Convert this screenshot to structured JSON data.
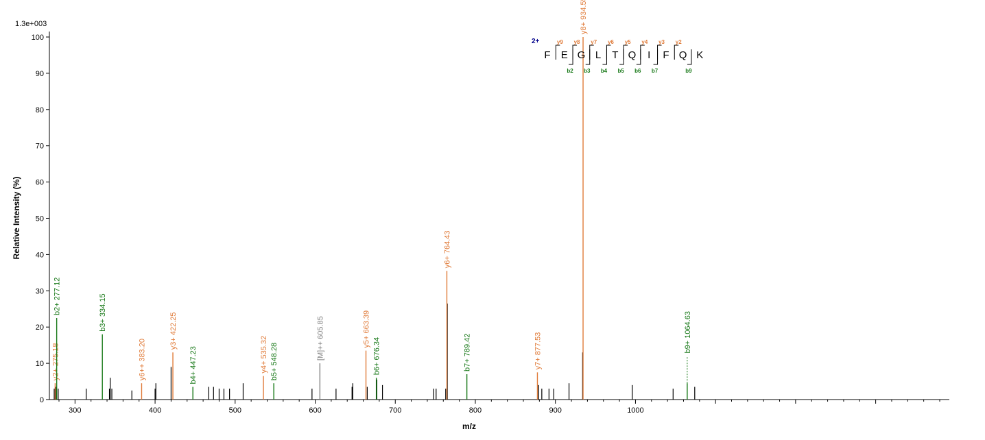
{
  "chart_data": {
    "type": "bar",
    "scale_label": "1.3e+003",
    "xlabel": "m/z",
    "ylabel": "Relative   Intensity (%)",
    "xlim": [
      268,
      1392
    ],
    "ylim": [
      0,
      100
    ],
    "x_ticks": [
      300,
      400,
      500,
      600,
      700,
      800,
      900,
      1000
    ],
    "y_ticks": [
      0,
      10,
      20,
      30,
      40,
      50,
      60,
      70,
      80,
      90,
      100
    ],
    "colors": {
      "b": "#1a7a1a",
      "y": "#e07b39",
      "precursor": "#808080",
      "unassigned": "#000000",
      "charge": "#00008b"
    },
    "unassigned_peaks": [
      {
        "mz": 274,
        "i": 3
      },
      {
        "mz": 276,
        "i": 3.5
      },
      {
        "mz": 279,
        "i": 3
      },
      {
        "mz": 314,
        "i": 3
      },
      {
        "mz": 343,
        "i": 3
      },
      {
        "mz": 344,
        "i": 6
      },
      {
        "mz": 346,
        "i": 3
      },
      {
        "mz": 371,
        "i": 2.5
      },
      {
        "mz": 400,
        "i": 3
      },
      {
        "mz": 401,
        "i": 4.5
      },
      {
        "mz": 420,
        "i": 9
      },
      {
        "mz": 467,
        "i": 3.5
      },
      {
        "mz": 473,
        "i": 3.5
      },
      {
        "mz": 480,
        "i": 3
      },
      {
        "mz": 486,
        "i": 3
      },
      {
        "mz": 493,
        "i": 3
      },
      {
        "mz": 510,
        "i": 4.5
      },
      {
        "mz": 596,
        "i": 3
      },
      {
        "mz": 626,
        "i": 3
      },
      {
        "mz": 646,
        "i": 3.5
      },
      {
        "mz": 647,
        "i": 4.5
      },
      {
        "mz": 665,
        "i": 3.5
      },
      {
        "mz": 677,
        "i": 5.5
      },
      {
        "mz": 684,
        "i": 4
      },
      {
        "mz": 748,
        "i": 3
      },
      {
        "mz": 751,
        "i": 3
      },
      {
        "mz": 763,
        "i": 3
      },
      {
        "mz": 765,
        "i": 26.5
      },
      {
        "mz": 879,
        "i": 4
      },
      {
        "mz": 883,
        "i": 3
      },
      {
        "mz": 892,
        "i": 3
      },
      {
        "mz": 898,
        "i": 3
      },
      {
        "mz": 917,
        "i": 4.5
      },
      {
        "mz": 934,
        "i": 13
      },
      {
        "mz": 996,
        "i": 4
      },
      {
        "mz": 1047,
        "i": 3
      },
      {
        "mz": 1074,
        "i": 3.5
      }
    ],
    "labeled_peaks": [
      {
        "mz": 275.18,
        "i": 4.5,
        "type": "y",
        "label": "y2+ 275.18"
      },
      {
        "mz": 277.12,
        "i": 22.5,
        "type": "b",
        "label": "b2+ 277.12"
      },
      {
        "mz": 334.15,
        "i": 18,
        "type": "b",
        "label": "b3+ 334.15"
      },
      {
        "mz": 383.2,
        "i": 4.5,
        "type": "y",
        "label": "y6++ 383.20"
      },
      {
        "mz": 422.25,
        "i": 13,
        "type": "y",
        "label": "y3+ 422.25"
      },
      {
        "mz": 447.23,
        "i": 3.5,
        "type": "b",
        "label": "b4+ 447.23"
      },
      {
        "mz": 535.32,
        "i": 6.5,
        "type": "y",
        "label": "y4+ 535.32"
      },
      {
        "mz": 548.28,
        "i": 4.5,
        "type": "b",
        "label": "b5+ 548.28"
      },
      {
        "mz": 605.85,
        "i": 10,
        "type": "precursor",
        "label": "[M]++ 605.85"
      },
      {
        "mz": 663.39,
        "i": 13.5,
        "type": "y",
        "label": "y5+ 663.39"
      },
      {
        "mz": 676.34,
        "i": 6,
        "type": "b",
        "label": "b6+ 676.34"
      },
      {
        "mz": 764.43,
        "i": 35.5,
        "type": "y",
        "label": "y6+ 764.43"
      },
      {
        "mz": 789.42,
        "i": 7,
        "type": "b",
        "label": "b7+ 789.42"
      },
      {
        "mz": 877.53,
        "i": 7.5,
        "type": "y",
        "label": "y7+ 877.53"
      },
      {
        "mz": 934.55,
        "i": 100,
        "type": "y",
        "label": "y8+ 934.55"
      },
      {
        "mz": 1064.63,
        "i": 4.5,
        "type": "b",
        "label": "b9+ 1064.63",
        "dashed_top": 12
      }
    ],
    "sequence_map": {
      "charge": "2+",
      "residues": [
        "F",
        "E",
        "G",
        "L",
        "T",
        "Q",
        "I",
        "F",
        "Q",
        "K"
      ],
      "y_ions": [
        "y9",
        "y8",
        "y7",
        "y6",
        "y5",
        "y4",
        "y3",
        "y2"
      ],
      "y_after_residue": [
        0,
        1,
        2,
        3,
        4,
        5,
        6,
        7
      ],
      "b_ions": [
        "b2",
        "b3",
        "b4",
        "b5",
        "b6",
        "b7",
        "b9"
      ],
      "b_after_residue": [
        1,
        2,
        3,
        4,
        5,
        6,
        8
      ]
    }
  }
}
